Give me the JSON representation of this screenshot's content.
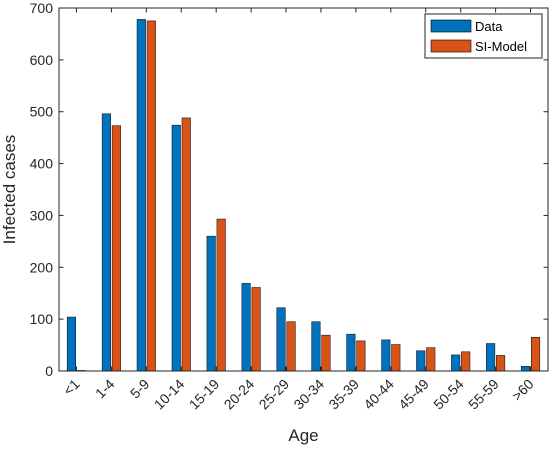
{
  "chart_data": {
    "type": "bar",
    "xlabel": "Age",
    "ylabel": "Infected cases",
    "ylim": [
      0,
      700
    ],
    "yticks": [
      0,
      100,
      200,
      300,
      400,
      500,
      600,
      700
    ],
    "categories": [
      "<1",
      "1-4",
      "5-9",
      "10-14",
      "15-19",
      "20-24",
      "25-29",
      "30-34",
      "35-39",
      "40-44",
      "45-49",
      "50-54",
      "55-59",
      ">60"
    ],
    "series": [
      {
        "name": "Data",
        "color": "#0072bd",
        "values": [
          104,
          496,
          678,
          474,
          260,
          169,
          122,
          95,
          71,
          60,
          39,
          31,
          53,
          9
        ]
      },
      {
        "name": "SI-Model",
        "color": "#d95319",
        "values": [
          1,
          473,
          675,
          488,
          293,
          161,
          95,
          69,
          58,
          51,
          45,
          37,
          30,
          65
        ]
      }
    ],
    "legend_position": "top-right",
    "grid": false
  }
}
